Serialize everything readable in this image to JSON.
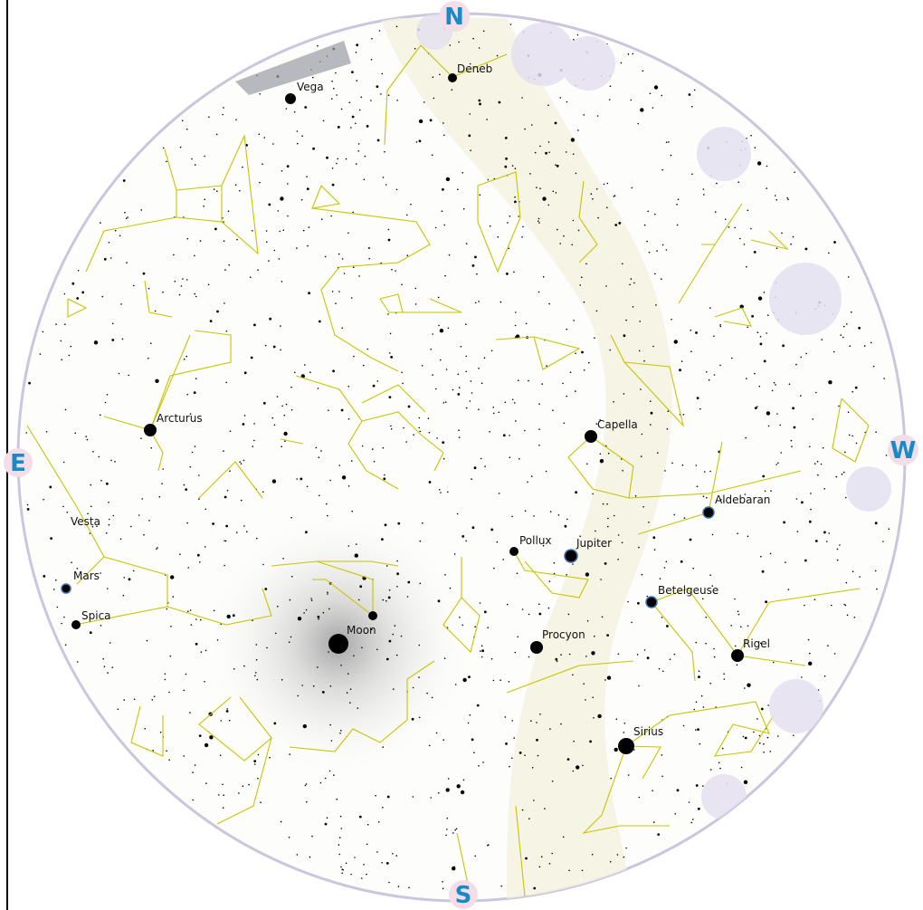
{
  "compass": {
    "north": "N",
    "east": "E",
    "south": "S",
    "west": "W"
  },
  "labels": [
    "Deneb",
    "Vega",
    "Arcturus",
    "Vesta",
    "Mars",
    "Spica",
    "Moon",
    "Pollux",
    "Jupiter",
    "Capella",
    "Aldebaran",
    "Betelgeuse",
    "Procyon",
    "Rigel",
    "Sirius"
  ]
}
